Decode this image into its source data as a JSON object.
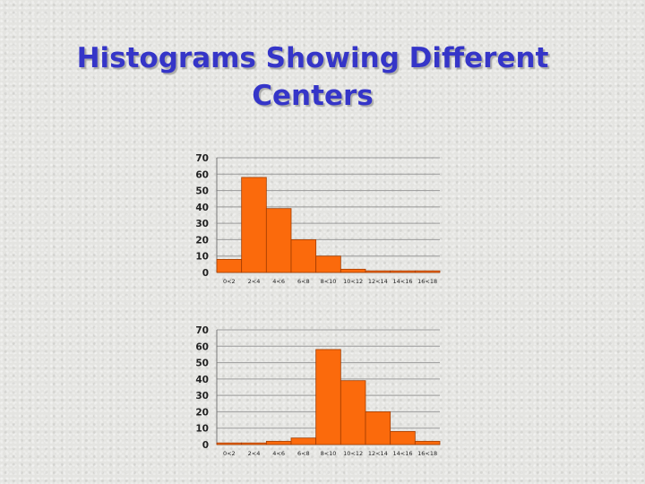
{
  "title": {
    "line1": "Histograms Showing Different",
    "line2": "Centers"
  },
  "colors": {
    "title": "#3535c8",
    "bar_fill": "#fb6a0c",
    "bar_stroke": "#a33d00",
    "grid": "#9a9a9a",
    "axis_text": "#222222"
  },
  "chart_data": [
    {
      "type": "bar",
      "categories": [
        "0<2",
        "2<4",
        "4<6",
        "6<8",
        "8<10",
        "10<12",
        "12<14",
        "14<16",
        "16<18"
      ],
      "values": [
        8,
        58,
        39,
        20,
        10,
        2,
        1,
        1,
        1
      ],
      "yticks": [
        0,
        10,
        20,
        30,
        40,
        50,
        60,
        70
      ],
      "ylim": [
        0,
        70
      ],
      "grid": true,
      "title": "",
      "xlabel": "",
      "ylabel": ""
    },
    {
      "type": "bar",
      "categories": [
        "0<2",
        "2<4",
        "4<6",
        "6<8",
        "8<10",
        "10<12",
        "12<14",
        "14<16",
        "16<18"
      ],
      "values": [
        1,
        1,
        2,
        4,
        58,
        39,
        20,
        8,
        2
      ],
      "yticks": [
        0,
        10,
        20,
        30,
        40,
        50,
        60,
        70
      ],
      "ylim": [
        0,
        70
      ],
      "grid": true,
      "title": "",
      "xlabel": "",
      "ylabel": ""
    }
  ]
}
